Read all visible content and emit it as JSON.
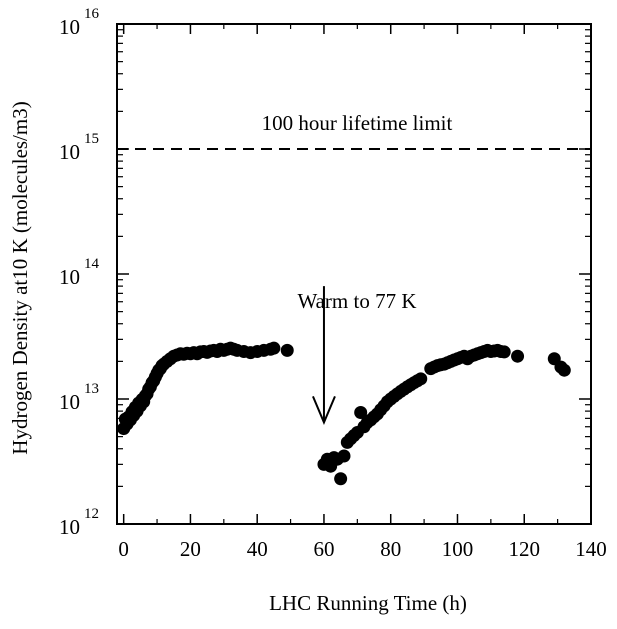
{
  "chart_data": {
    "type": "scatter",
    "title": "",
    "xlabel": "LHC Running Time (h)",
    "ylabel": "Hydrogen Density at10 K (molecules/m3)",
    "xlim": [
      -2,
      140
    ],
    "ylim_exponent": [
      12,
      16
    ],
    "y_scale": "log",
    "grid": false,
    "legend": "none",
    "x_ticks": [
      "0",
      "20",
      "40",
      "60",
      "80",
      "100",
      "120",
      "140"
    ],
    "x_tick_values": [
      0,
      20,
      40,
      60,
      80,
      100,
      120,
      140
    ],
    "y_ticks": [
      {
        "base": "10",
        "exp": "12",
        "value": 1000000000000.0
      },
      {
        "base": "10",
        "exp": "13",
        "value": 10000000000000.0
      },
      {
        "base": "10",
        "exp": "14",
        "value": 100000000000000.0
      },
      {
        "base": "10",
        "exp": "15",
        "value": 1000000000000000.0
      },
      {
        "base": "10",
        "exp": "16",
        "value": 1e+16
      }
    ],
    "reference_line": {
      "label": "100 hour lifetime limit",
      "value": 1000000000000000.0,
      "style": "dashed"
    },
    "annotation": {
      "text": "Warm to 77 K",
      "x": 60,
      "arrow_from": 80000000000000.0,
      "arrow_to": 6500000000000.0
    },
    "series": [
      {
        "points": [
          [
            0,
            5800000000000.0
          ],
          [
            0.5,
            6900000000000.0
          ],
          [
            1,
            6300000000000.0
          ],
          [
            1.5,
            7200000000000.0
          ],
          [
            2,
            6800000000000.0
          ],
          [
            2.5,
            7900000000000.0
          ],
          [
            3,
            7400000000000.0
          ],
          [
            3.5,
            8600000000000.0
          ],
          [
            4,
            8000000000000.0
          ],
          [
            4.5,
            9300000000000.0
          ],
          [
            5,
            8800000000000.0
          ],
          [
            5.5,
            9900000000000.0
          ],
          [
            6,
            9500000000000.0
          ],
          [
            6.5,
            10600000000000.0
          ],
          [
            7,
            11000000000000.0
          ],
          [
            7.5,
            12000000000000.0
          ],
          [
            8,
            12500000000000.0
          ],
          [
            8.5,
            13500000000000.0
          ],
          [
            9,
            14000000000000.0
          ],
          [
            9.5,
            15000000000000.0
          ],
          [
            10,
            16000000000000.0
          ],
          [
            10.5,
            17000000000000.0
          ],
          [
            11,
            17500000000000.0
          ],
          [
            11.5,
            18500000000000.0
          ],
          [
            12,
            19000000000000.0
          ],
          [
            13,
            20000000000000.0
          ],
          [
            14,
            21000000000000.0
          ],
          [
            15,
            22000000000000.0
          ],
          [
            16,
            22500000000000.0
          ],
          [
            17,
            23000000000000.0
          ],
          [
            18,
            22800000000000.0
          ],
          [
            19,
            23200000000000.0
          ],
          [
            20,
            23000000000000.0
          ],
          [
            21,
            23500000000000.0
          ],
          [
            22,
            23000000000000.0
          ],
          [
            23,
            23800000000000.0
          ],
          [
            24,
            24000000000000.0
          ],
          [
            25,
            23600000000000.0
          ],
          [
            26,
            24200000000000.0
          ],
          [
            27,
            24500000000000.0
          ],
          [
            28,
            24000000000000.0
          ],
          [
            29,
            25000000000000.0
          ],
          [
            30,
            24500000000000.0
          ],
          [
            31,
            25000000000000.0
          ],
          [
            32,
            25500000000000.0
          ],
          [
            33,
            25000000000000.0
          ],
          [
            34,
            24500000000000.0
          ],
          [
            36,
            24000000000000.0
          ],
          [
            38,
            23500000000000.0
          ],
          [
            40,
            24000000000000.0
          ],
          [
            42,
            24500000000000.0
          ],
          [
            44,
            25000000000000.0
          ],
          [
            45,
            25500000000000.0
          ],
          [
            49,
            24500000000000.0
          ],
          [
            60,
            3000000000000.0
          ],
          [
            61,
            3300000000000.0
          ],
          [
            62,
            2900000000000.0
          ],
          [
            63,
            3400000000000.0
          ],
          [
            64,
            3300000000000.0
          ],
          [
            65,
            2300000000000.0
          ],
          [
            66,
            3500000000000.0
          ],
          [
            67,
            4500000000000.0
          ],
          [
            68,
            4800000000000.0
          ],
          [
            69,
            5100000000000.0
          ],
          [
            70,
            5400000000000.0
          ],
          [
            71,
            7800000000000.0
          ],
          [
            72,
            6000000000000.0
          ],
          [
            73,
            6500000000000.0
          ],
          [
            74,
            6800000000000.0
          ],
          [
            75,
            7200000000000.0
          ],
          [
            76,
            7600000000000.0
          ],
          [
            77,
            8200000000000.0
          ],
          [
            78,
            8800000000000.0
          ],
          [
            79,
            9500000000000.0
          ],
          [
            80,
            10000000000000.0
          ],
          [
            81,
            10500000000000.0
          ],
          [
            82,
            11000000000000.0
          ],
          [
            83,
            11500000000000.0
          ],
          [
            84,
            12000000000000.0
          ],
          [
            85,
            12500000000000.0
          ],
          [
            86,
            13000000000000.0
          ],
          [
            87,
            13500000000000.0
          ],
          [
            88,
            14000000000000.0
          ],
          [
            89,
            14500000000000.0
          ],
          [
            92,
            17500000000000.0
          ],
          [
            93,
            18000000000000.0
          ],
          [
            94,
            18500000000000.0
          ],
          [
            95,
            18800000000000.0
          ],
          [
            96,
            19000000000000.0
          ],
          [
            97,
            19500000000000.0
          ],
          [
            98,
            20000000000000.0
          ],
          [
            99,
            20500000000000.0
          ],
          [
            100,
            21000000000000.0
          ],
          [
            101,
            21500000000000.0
          ],
          [
            102,
            22000000000000.0
          ],
          [
            103,
            21000000000000.0
          ],
          [
            104,
            22000000000000.0
          ],
          [
            105,
            22500000000000.0
          ],
          [
            106,
            23000000000000.0
          ],
          [
            107,
            23500000000000.0
          ],
          [
            108,
            24000000000000.0
          ],
          [
            109,
            24500000000000.0
          ],
          [
            110,
            24000000000000.0
          ],
          [
            111,
            24200000000000.0
          ],
          [
            112,
            24500000000000.0
          ],
          [
            113,
            24000000000000.0
          ],
          [
            114,
            23800000000000.0
          ],
          [
            118,
            22000000000000.0
          ],
          [
            129,
            21000000000000.0
          ],
          [
            131,
            18000000000000.0
          ],
          [
            132,
            17000000000000.0
          ]
        ]
      }
    ]
  }
}
